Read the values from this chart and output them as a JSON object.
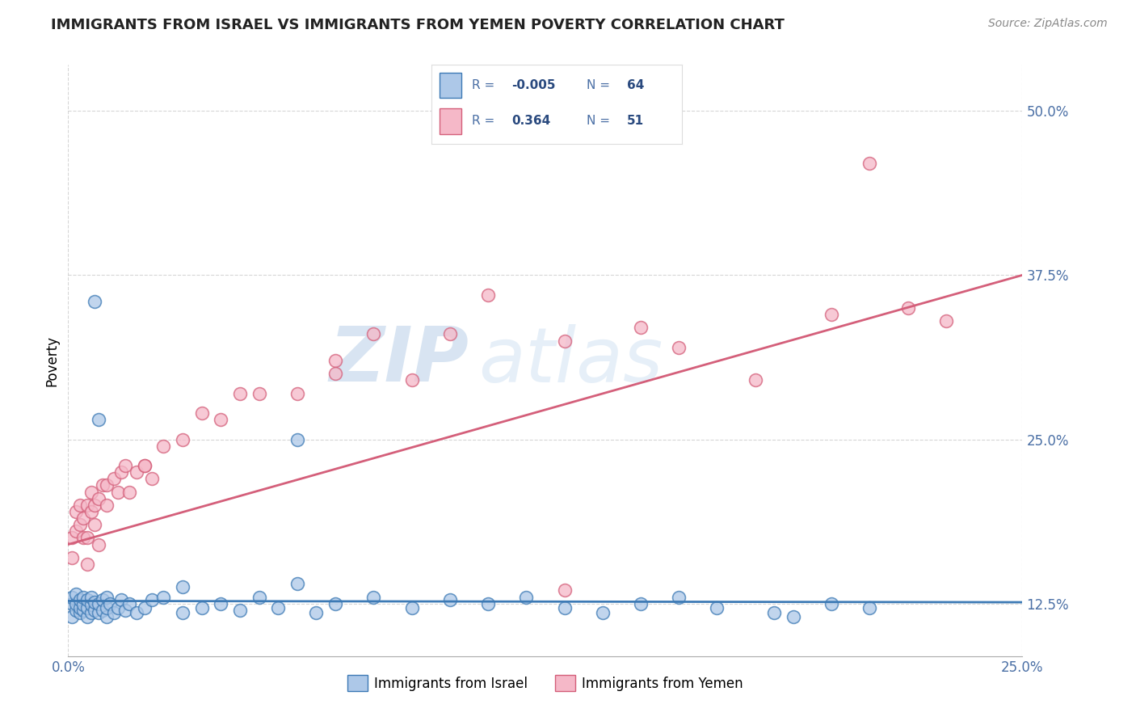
{
  "title": "IMMIGRANTS FROM ISRAEL VS IMMIGRANTS FROM YEMEN POVERTY CORRELATION CHART",
  "source": "Source: ZipAtlas.com",
  "ylabel_label": "Poverty",
  "legend_label1": "Immigrants from Israel",
  "legend_label2": "Immigrants from Yemen",
  "R1": -0.005,
  "N1": 64,
  "R2": 0.364,
  "N2": 51,
  "color_israel": "#adc8e8",
  "color_yemen": "#f5b8c8",
  "color_israel_line": "#3d7ab5",
  "color_yemen_line": "#d45f7a",
  "color_text": "#4a6fa5",
  "color_text_dark": "#2a4a7f",
  "xmin": 0.0,
  "xmax": 0.25,
  "ymin": 0.085,
  "ymax": 0.535,
  "watermark_zip": "ZIP",
  "watermark_atlas": "atlas",
  "israel_x": [
    0.001,
    0.001,
    0.001,
    0.002,
    0.002,
    0.002,
    0.003,
    0.003,
    0.003,
    0.004,
    0.004,
    0.004,
    0.005,
    0.005,
    0.005,
    0.006,
    0.006,
    0.006,
    0.007,
    0.007,
    0.008,
    0.008,
    0.009,
    0.009,
    0.01,
    0.01,
    0.01,
    0.011,
    0.012,
    0.013,
    0.014,
    0.015,
    0.016,
    0.018,
    0.02,
    0.022,
    0.025,
    0.03,
    0.03,
    0.035,
    0.04,
    0.045,
    0.05,
    0.055,
    0.06,
    0.065,
    0.07,
    0.08,
    0.09,
    0.1,
    0.11,
    0.12,
    0.13,
    0.14,
    0.15,
    0.16,
    0.17,
    0.185,
    0.2,
    0.21,
    0.007,
    0.008,
    0.06,
    0.19
  ],
  "israel_y": [
    0.115,
    0.125,
    0.13,
    0.12,
    0.125,
    0.132,
    0.118,
    0.122,
    0.128,
    0.12,
    0.124,
    0.13,
    0.115,
    0.122,
    0.128,
    0.118,
    0.124,
    0.13,
    0.12,
    0.126,
    0.118,
    0.125,
    0.12,
    0.128,
    0.115,
    0.122,
    0.13,
    0.125,
    0.118,
    0.122,
    0.128,
    0.12,
    0.125,
    0.118,
    0.122,
    0.128,
    0.13,
    0.118,
    0.138,
    0.122,
    0.125,
    0.12,
    0.13,
    0.122,
    0.14,
    0.118,
    0.125,
    0.13,
    0.122,
    0.128,
    0.125,
    0.13,
    0.122,
    0.118,
    0.125,
    0.13,
    0.122,
    0.118,
    0.125,
    0.122,
    0.355,
    0.265,
    0.25,
    0.115
  ],
  "yemen_x": [
    0.001,
    0.001,
    0.002,
    0.002,
    0.003,
    0.003,
    0.004,
    0.004,
    0.005,
    0.005,
    0.006,
    0.006,
    0.007,
    0.007,
    0.008,
    0.009,
    0.01,
    0.01,
    0.012,
    0.013,
    0.014,
    0.015,
    0.016,
    0.018,
    0.02,
    0.022,
    0.025,
    0.03,
    0.035,
    0.04,
    0.045,
    0.05,
    0.06,
    0.07,
    0.08,
    0.09,
    0.1,
    0.11,
    0.13,
    0.15,
    0.16,
    0.18,
    0.2,
    0.21,
    0.22,
    0.23,
    0.005,
    0.008,
    0.02,
    0.07,
    0.13
  ],
  "yemen_y": [
    0.16,
    0.175,
    0.18,
    0.195,
    0.185,
    0.2,
    0.175,
    0.19,
    0.175,
    0.2,
    0.21,
    0.195,
    0.185,
    0.2,
    0.205,
    0.215,
    0.2,
    0.215,
    0.22,
    0.21,
    0.225,
    0.23,
    0.21,
    0.225,
    0.23,
    0.22,
    0.245,
    0.25,
    0.27,
    0.265,
    0.285,
    0.285,
    0.285,
    0.31,
    0.33,
    0.295,
    0.33,
    0.36,
    0.135,
    0.335,
    0.32,
    0.295,
    0.345,
    0.46,
    0.35,
    0.34,
    0.155,
    0.17,
    0.23,
    0.3,
    0.325
  ],
  "israel_line_y0": 0.127,
  "israel_line_y1": 0.126,
  "yemen_line_y0": 0.17,
  "yemen_line_y1": 0.375
}
